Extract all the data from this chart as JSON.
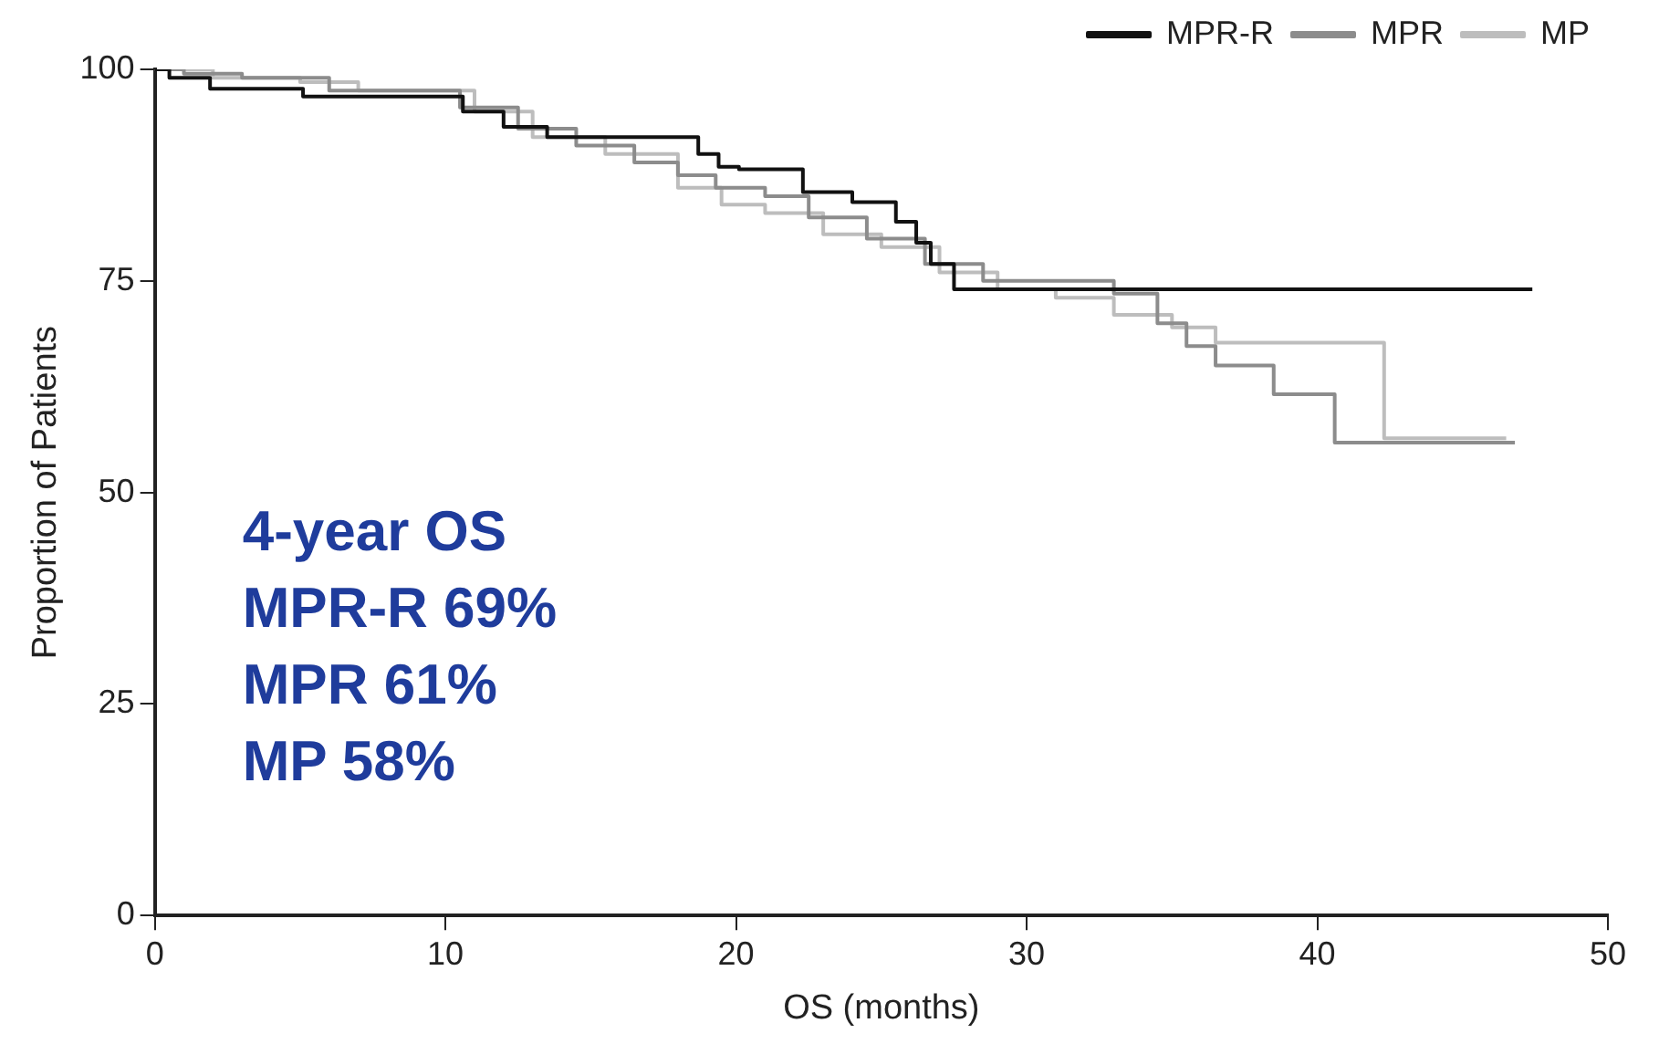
{
  "chart_data": {
    "type": "step",
    "xlabel": "OS (months)",
    "ylabel": "Proportion of Patients",
    "xlim": [
      0,
      50
    ],
    "xticks": [
      0,
      10,
      20,
      30,
      40,
      50
    ],
    "ylim": [
      0,
      100
    ],
    "yticks": [
      0,
      25,
      50,
      75,
      100
    ],
    "grid": false,
    "legend": "top right",
    "marker": "none",
    "line_style": "solid",
    "annotations": [
      "4-year OS",
      "MPR-R 69%",
      "MPR 61%",
      "MP 58%"
    ],
    "series": [
      {
        "name": "MPR-R",
        "color": "#111111",
        "x": [
          0,
          0.5,
          1.9,
          5.1,
          10.6,
          12,
          13.5,
          18.7,
          19.4,
          20.1,
          22.3,
          24,
          25.5,
          26.2,
          26.7,
          27.5,
          47.4
        ],
        "values": [
          100,
          99,
          97.7,
          96.8,
          95,
          93.2,
          92,
          90,
          88.5,
          88.2,
          85.5,
          84.3,
          82,
          79.5,
          77,
          74,
          74
        ]
      },
      {
        "name": "MPR",
        "color": "#8c8c8c",
        "x": [
          0,
          1,
          3,
          6,
          10.5,
          12.5,
          14.5,
          16.5,
          18,
          19.3,
          21,
          22.5,
          24.5,
          26.5,
          28.5,
          33,
          34.5,
          35.5,
          36.5,
          38.5,
          40.6,
          46.8
        ],
        "values": [
          100,
          99.5,
          99,
          97.5,
          95.5,
          93,
          91,
          89,
          87.5,
          86,
          85,
          82.5,
          80,
          77,
          75,
          73.5,
          70,
          67.3,
          65,
          61.6,
          55.9,
          55.9
        ]
      },
      {
        "name": "MP",
        "color": "#bdbdbd",
        "x": [
          0,
          2,
          5,
          7,
          11,
          13,
          15.5,
          18,
          19.5,
          21,
          23,
          25,
          27,
          29,
          31,
          33,
          35,
          36.5,
          42.3,
          46.5
        ],
        "values": [
          100,
          99,
          98.5,
          97.5,
          95,
          92,
          90,
          86,
          84,
          83,
          80.5,
          79,
          76,
          74,
          73,
          71,
          69.5,
          67.7,
          56.4,
          56.4
        ]
      }
    ]
  }
}
